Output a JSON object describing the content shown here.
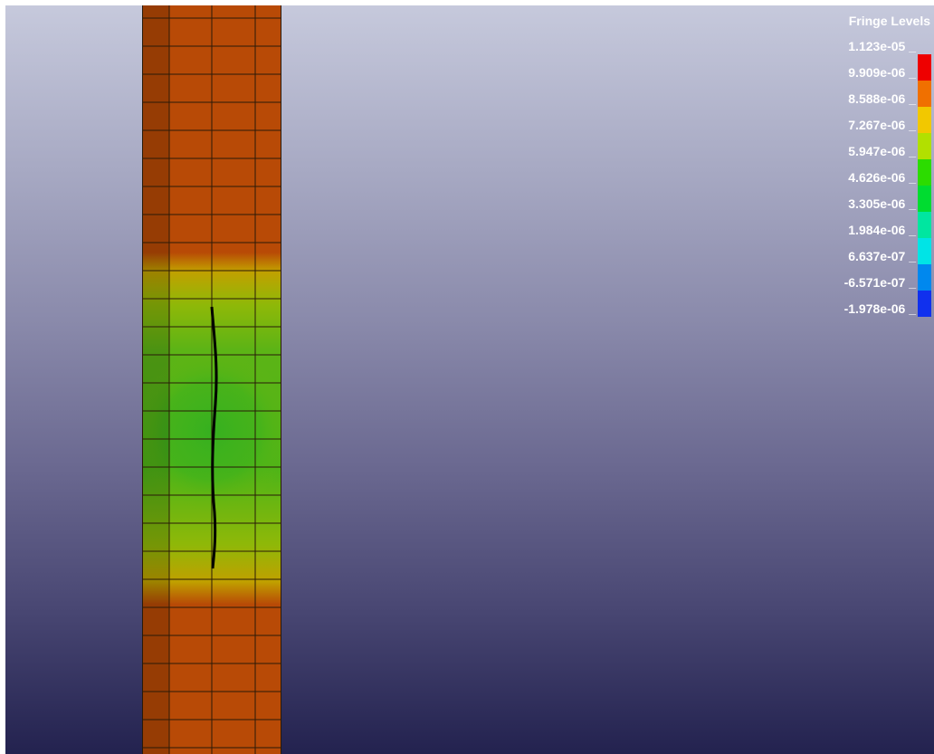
{
  "legend": {
    "title": "Fringe Levels",
    "levels": [
      {
        "label": "1.123e-05 _",
        "color": "#ee0000"
      },
      {
        "label": "9.909e-06 _",
        "color": "#f07000"
      },
      {
        "label": "8.588e-06 _",
        "color": "#f2c800"
      },
      {
        "label": "7.267e-06 _",
        "color": "#b2e000"
      },
      {
        "label": "5.947e-06 _",
        "color": "#2cdc00"
      },
      {
        "label": "4.626e-06 _",
        "color": "#00dc30"
      },
      {
        "label": "3.305e-06 _",
        "color": "#00e6a0"
      },
      {
        "label": "1.984e-06 _",
        "color": "#00e4e6"
      },
      {
        "label": "6.637e-07 _",
        "color": "#0088ee"
      },
      {
        "label": "-6.571e-07 _",
        "color": "#1030ee"
      },
      {
        "label": "-1.978e-06 _",
        "color": null
      }
    ]
  },
  "model": {
    "colors": {
      "outer": "#b84a06",
      "edge_strip": "#8e3c0a",
      "transition": "#a8b400",
      "center": "#3fb21c",
      "crack": "#000000"
    }
  }
}
